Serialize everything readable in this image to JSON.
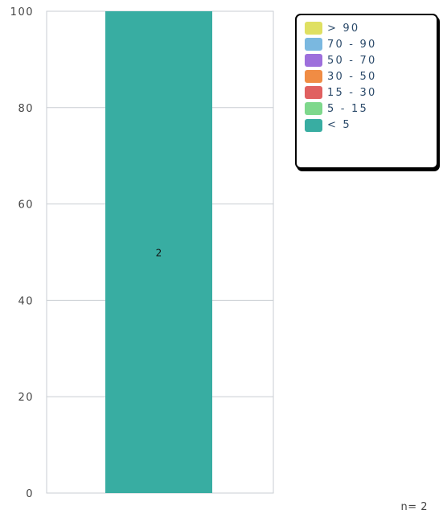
{
  "chart_data": {
    "type": "bar",
    "stacked": true,
    "categories": [
      ""
    ],
    "series": [
      {
        "name": "> 90",
        "values": [
          0
        ],
        "color": "#dfe062"
      },
      {
        "name": "70 - 90",
        "values": [
          0
        ],
        "color": "#7ab8e0"
      },
      {
        "name": "50 - 70",
        "values": [
          0
        ],
        "color": "#9d6fdc"
      },
      {
        "name": "30 - 50",
        "values": [
          0
        ],
        "color": "#f08c44"
      },
      {
        "name": "15 - 30",
        "values": [
          0
        ],
        "color": "#e06060"
      },
      {
        "name": "5 - 15",
        "values": [
          0
        ],
        "color": "#7ed88c"
      },
      {
        "name": "< 5",
        "values": [
          100
        ],
        "color": "#38ada2",
        "data_label": "2"
      }
    ],
    "ylim": [
      0,
      100
    ],
    "yticks": [
      "0",
      "20",
      "40",
      "60",
      "80",
      "100"
    ],
    "grid": true,
    "legend_position": "top-right",
    "n_label": "n= 2"
  }
}
